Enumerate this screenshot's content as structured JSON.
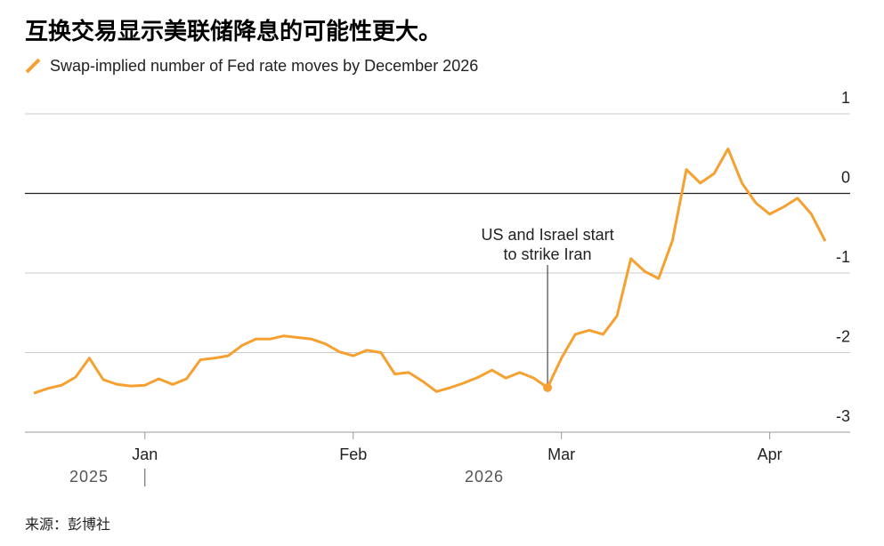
{
  "chart_data": {
    "type": "line",
    "title": "互换交易显示美联储降息的可能性更大。",
    "categories": [
      null,
      null,
      null,
      null,
      null,
      null,
      null,
      null,
      "Jan",
      null,
      null,
      null,
      null,
      null,
      null,
      null,
      null,
      null,
      null,
      null,
      null,
      null,
      null,
      "Feb",
      null,
      null,
      null,
      null,
      null,
      null,
      null,
      null,
      null,
      null,
      null,
      null,
      null,
      null,
      "Mar",
      null,
      null,
      null,
      null,
      null,
      null,
      null,
      null,
      null,
      null,
      null,
      null,
      null,
      null,
      "Apr",
      null,
      null,
      null,
      null
    ],
    "year_labels": [
      "2025",
      "2026"
    ],
    "series": [
      {
        "name": "Swap-implied number of Fed rate moves by December 2026",
        "color": "#f5a030",
        "values": [
          -2.51,
          -2.45,
          -2.41,
          -2.31,
          -2.07,
          -2.34,
          -2.4,
          -2.42,
          -2.41,
          -2.33,
          -2.4,
          -2.33,
          -2.09,
          -2.07,
          -2.04,
          -1.91,
          -1.83,
          -1.83,
          -1.79,
          -1.81,
          -1.83,
          -1.89,
          -1.99,
          -2.04,
          -1.97,
          -2.0,
          -2.27,
          -2.25,
          -2.36,
          -2.49,
          -2.44,
          -2.38,
          -2.31,
          -2.22,
          -2.32,
          -2.25,
          -2.32,
          -2.44,
          -2.07,
          -1.77,
          -1.72,
          -1.77,
          -1.54,
          -0.82,
          -0.98,
          -1.07,
          -0.59,
          0.3,
          0.13,
          0.25,
          0.56,
          0.13,
          -0.12,
          -0.26,
          -0.17,
          -0.06,
          -0.26,
          -0.6
        ]
      }
    ],
    "annotation": [
      "US and Israel start",
      "to strike Iran"
    ],
    "ylim": [
      -3,
      1
    ],
    "yticks": [
      1,
      0,
      -1,
      -2,
      -3
    ],
    "grid": true,
    "source": "来源：彭博社"
  }
}
